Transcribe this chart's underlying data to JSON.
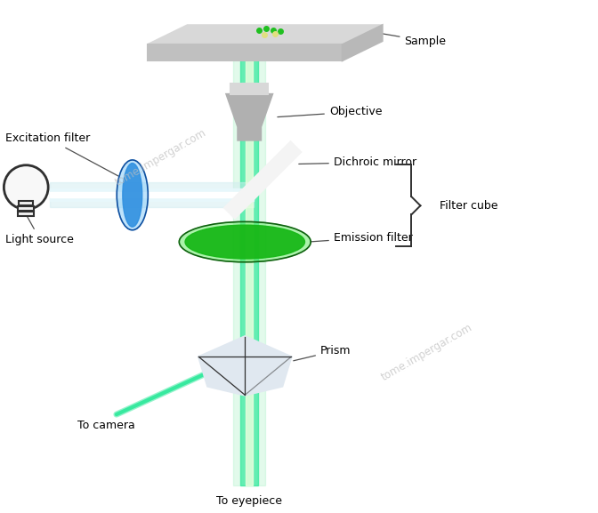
{
  "background_color": "#ffffff",
  "fig_width": 6.72,
  "fig_height": 5.77,
  "labels": {
    "sample": "Sample",
    "objective": "Objective",
    "excitation_filter": "Excitation filter",
    "dichroic_mirror": "Dichroic mirror",
    "emission_filter": "Emission filter",
    "filter_cube": "Filter cube",
    "light_source": "Light source",
    "prism": "Prism",
    "to_camera": "To camera",
    "to_eyepiece": "To eyepiece"
  },
  "colors": {
    "green_beam": "#2de89a",
    "green_beam_mid": "#c8f5d8",
    "green_beam_center": "#fffff0",
    "beam_glow": "#a0f0c0",
    "cyan_beam": "#b0e8f0",
    "cyan_beam_mid": "#d8f4f8",
    "light_gray": "#c8c8c8",
    "mid_gray": "#909090",
    "dark_gray": "#303030",
    "blue_filter": "#3090e0",
    "blue_filter_light": "#80c8f8",
    "green_filter": "#18b818",
    "green_filter_light": "#58e858",
    "label_line": "#404040",
    "white": "#ffffff",
    "black": "#000000",
    "objective_gray": "#b0b0b0",
    "objective_light": "#d8d8d8",
    "mirror_white": "#f0f0f0",
    "prism_light": "#e0e8f0",
    "sample_top": "#d8d8d8",
    "sample_front": "#c0c0c0",
    "watermark": "#c8c8c8"
  }
}
